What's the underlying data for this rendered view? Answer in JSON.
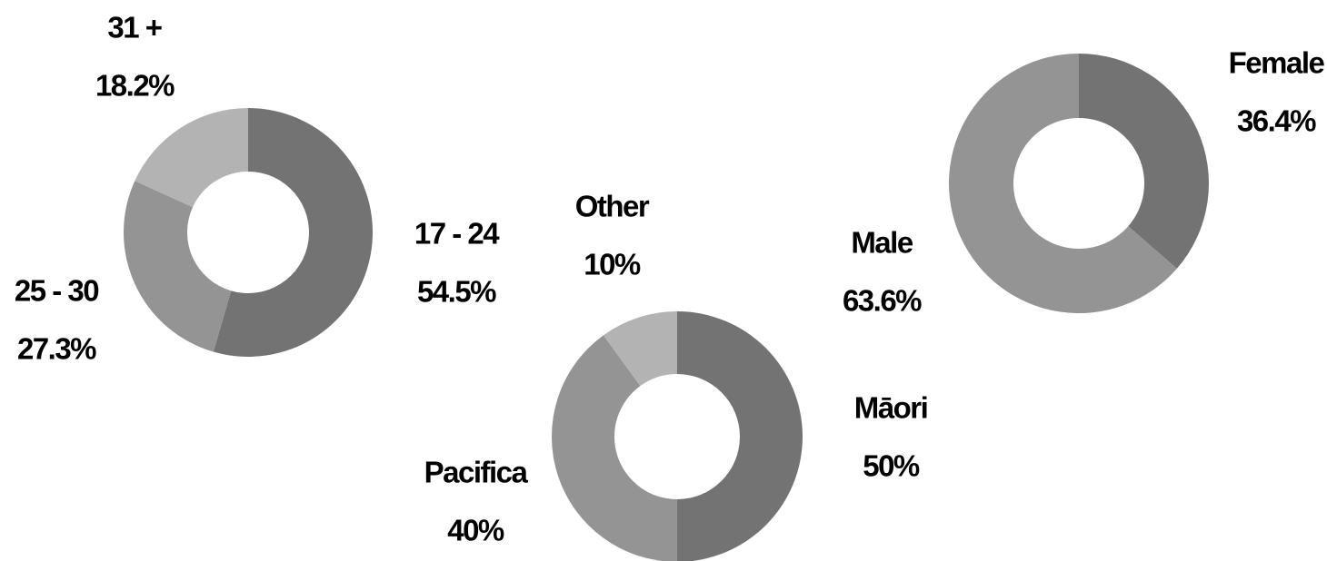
{
  "chart_data": [
    {
      "type": "pie",
      "categories": [
        "17 - 24",
        "25 - 30",
        "31 +"
      ],
      "values": [
        54.5,
        27.3,
        18.2
      ],
      "value_labels": [
        "54.5%",
        "27.3%",
        "18.2%"
      ],
      "colors": [
        "#737373",
        "#949494",
        "#b3b3b3"
      ]
    },
    {
      "type": "pie",
      "categories": [
        "Māori",
        "Pacifica",
        "Other"
      ],
      "values": [
        50,
        40,
        10
      ],
      "value_labels": [
        "50%",
        "40%",
        "10%"
      ],
      "colors": [
        "#737373",
        "#949494",
        "#b3b3b3"
      ]
    },
    {
      "type": "pie",
      "categories": [
        "Female",
        "Male"
      ],
      "values": [
        36.4,
        63.6
      ],
      "value_labels": [
        "36.4%",
        "63.6%"
      ],
      "colors": [
        "#737373",
        "#949494"
      ]
    }
  ]
}
